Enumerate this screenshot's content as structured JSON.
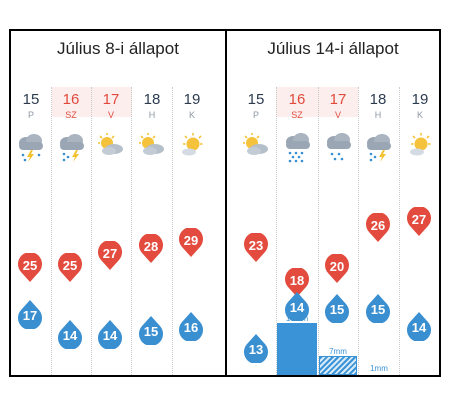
{
  "left_panel": {
    "title": "Július 8-i állapot",
    "days": [
      {
        "num": "15",
        "name": "P",
        "weekend": false,
        "icon": "thunderstorm-icon",
        "max": "25",
        "min": "17"
      },
      {
        "num": "16",
        "name": "SZ",
        "weekend": true,
        "icon": "rain-thunder-icon",
        "max": "25",
        "min": "14"
      },
      {
        "num": "17",
        "name": "V",
        "weekend": true,
        "icon": "partly-cloudy-icon",
        "max": "27",
        "min": "14"
      },
      {
        "num": "18",
        "name": "H",
        "weekend": false,
        "icon": "partly-cloudy-icon",
        "max": "28",
        "min": "15"
      },
      {
        "num": "19",
        "name": "K",
        "weekend": false,
        "icon": "sunny-icon",
        "max": "29",
        "min": "16"
      }
    ]
  },
  "right_panel": {
    "title": "Július 14-i állapot",
    "days": [
      {
        "num": "15",
        "name": "P",
        "weekend": false,
        "icon": "partly-cloudy-icon",
        "max": "23",
        "min": "13"
      },
      {
        "num": "16",
        "name": "SZ",
        "weekend": true,
        "icon": "heavy-rain-icon",
        "max": "18",
        "min": "14",
        "precip": "18mm"
      },
      {
        "num": "17",
        "name": "V",
        "weekend": true,
        "icon": "rain-icon",
        "max": "20",
        "min": "15",
        "precip": "7mm"
      },
      {
        "num": "18",
        "name": "H",
        "weekend": false,
        "icon": "rain-thunder-icon",
        "max": "26",
        "min": "15",
        "precip": "1mm"
      },
      {
        "num": "19",
        "name": "K",
        "weekend": false,
        "icon": "sunny-icon",
        "max": "27",
        "min": "14"
      }
    ]
  },
  "colors": {
    "max_temp": "#e34b3e",
    "min_temp": "#3a8fd1",
    "precip": "#3a93d6",
    "weekend_bg": "#fdeeee",
    "weekend_text": "#e04a3c"
  }
}
